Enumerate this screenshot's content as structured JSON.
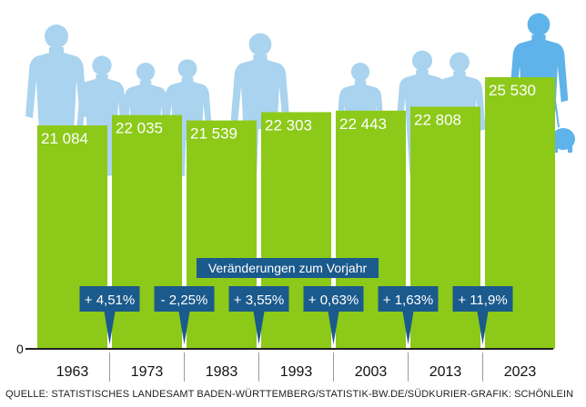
{
  "chart_data": {
    "type": "bar",
    "categories": [
      "1963",
      "1973",
      "1983",
      "1993",
      "2003",
      "2013",
      "2023"
    ],
    "values": [
      21084,
      22035,
      21539,
      22303,
      22443,
      22808,
      25530
    ],
    "value_labels": [
      "21 084",
      "22 035",
      "21 539",
      "22 303",
      "22 443",
      "22 808",
      "25 530"
    ],
    "y_tick_label": "0",
    "changes_title": "Veränderungen zum Vorjahr",
    "changes": [
      "+ 4,51%",
      "- 2,25%",
      "+ 3,55%",
      "+ 0,63%",
      "+ 1,63%",
      "+ 11,9%"
    ],
    "colors": {
      "bar": "#8cc919",
      "box": "#1b5a8c",
      "people": "#a9d3ee",
      "people_dark": "#5eb3ea"
    },
    "icons": [
      "people-silhouette-icon",
      "woman-with-dog-icon"
    ]
  },
  "source": "QUELLE: STATISTISCHES LANDESAMT BADEN-WÜRTTEMBERG/STATISTIK-BW.DE/SÜDKURIER-GRAFIK: SCHÖNLEIN"
}
